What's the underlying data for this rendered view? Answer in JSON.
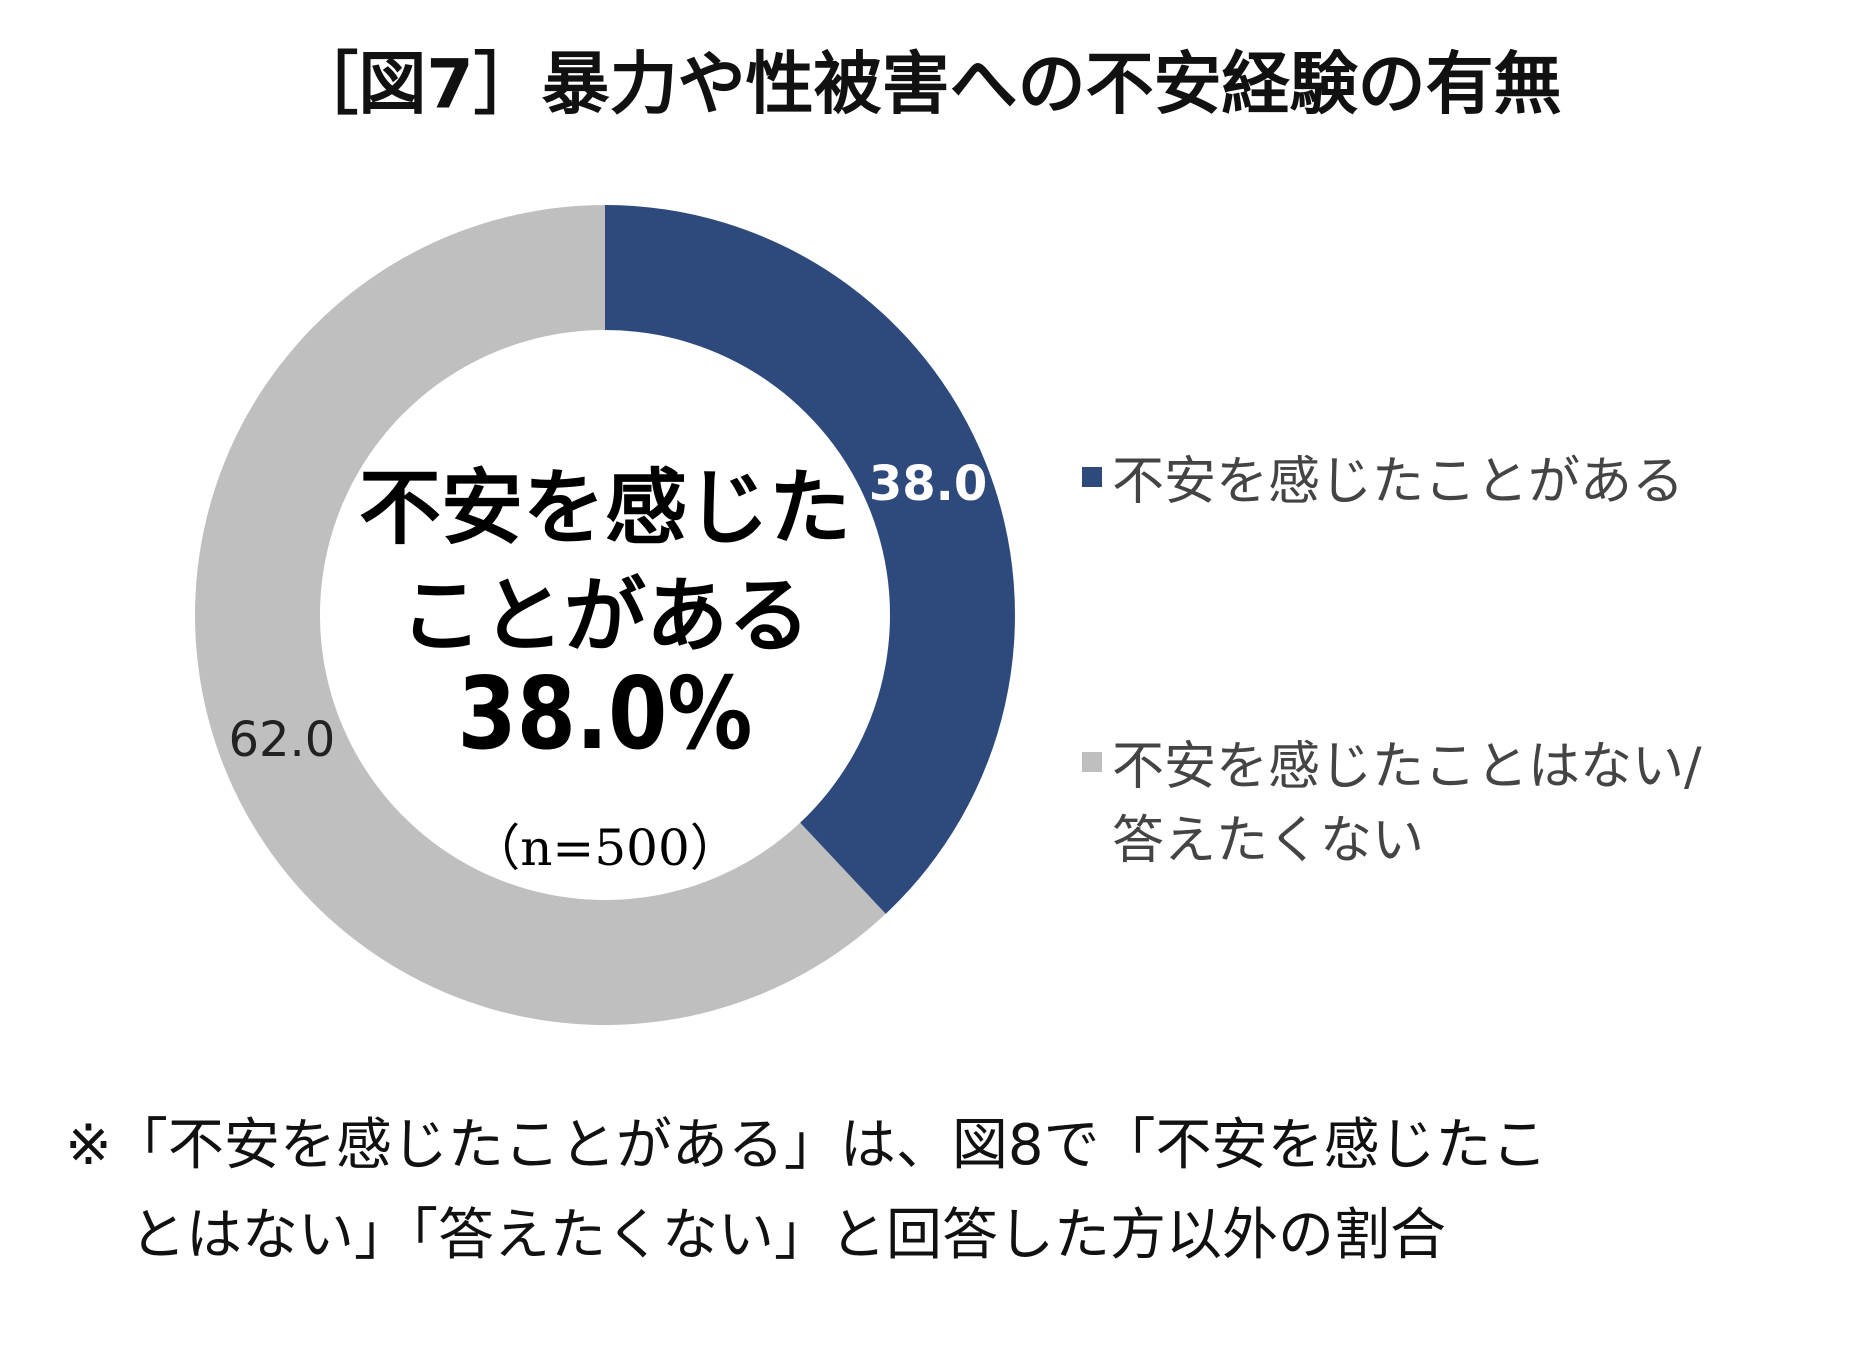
{
  "chart_data": {
    "type": "donut",
    "title": "［図7］暴力や性被害への不安経験の有無",
    "categories": [
      "不安を感じたことがある",
      "不安を感じたことはない/\n答えたくない"
    ],
    "values": [
      38.0,
      62.0
    ],
    "value_labels": [
      "38.0",
      "62.0"
    ],
    "colors": [
      "#2e4a7d",
      "#bfbfbf"
    ],
    "label_colors": [
      "#ffffff",
      "#222222"
    ],
    "center_label": "不安を感じた\nことがある",
    "center_value": "38.0%",
    "center_note": "（n=500）",
    "legend": "right",
    "notes": [
      "※「不安を感じたことがある」は、図8で「不安を感じたこ",
      "とはない」「答えたくない」と回答した方以外の割合"
    ]
  }
}
